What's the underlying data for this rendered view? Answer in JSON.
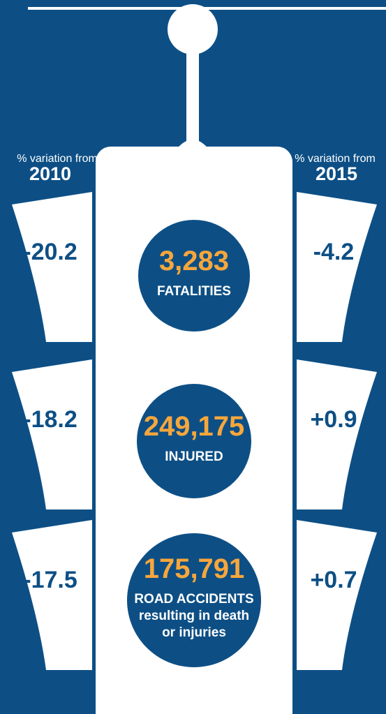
{
  "left_header": {
    "caption": "% variation from",
    "year": "2010"
  },
  "right_header": {
    "caption": "% variation from",
    "year": "2015"
  },
  "rows": [
    {
      "left": "-20.2",
      "value": "3,283",
      "label": [
        "FATALITIES"
      ],
      "right": "-4.2"
    },
    {
      "left": "-18.2",
      "value": "249,175",
      "label": [
        "INJURED"
      ],
      "right": "+0.9"
    },
    {
      "left": "-17.5",
      "value": "175,791",
      "label": [
        "ROAD ACCIDENTS",
        "resulting in death",
        "or injuries"
      ],
      "right": "+0.7"
    }
  ]
}
